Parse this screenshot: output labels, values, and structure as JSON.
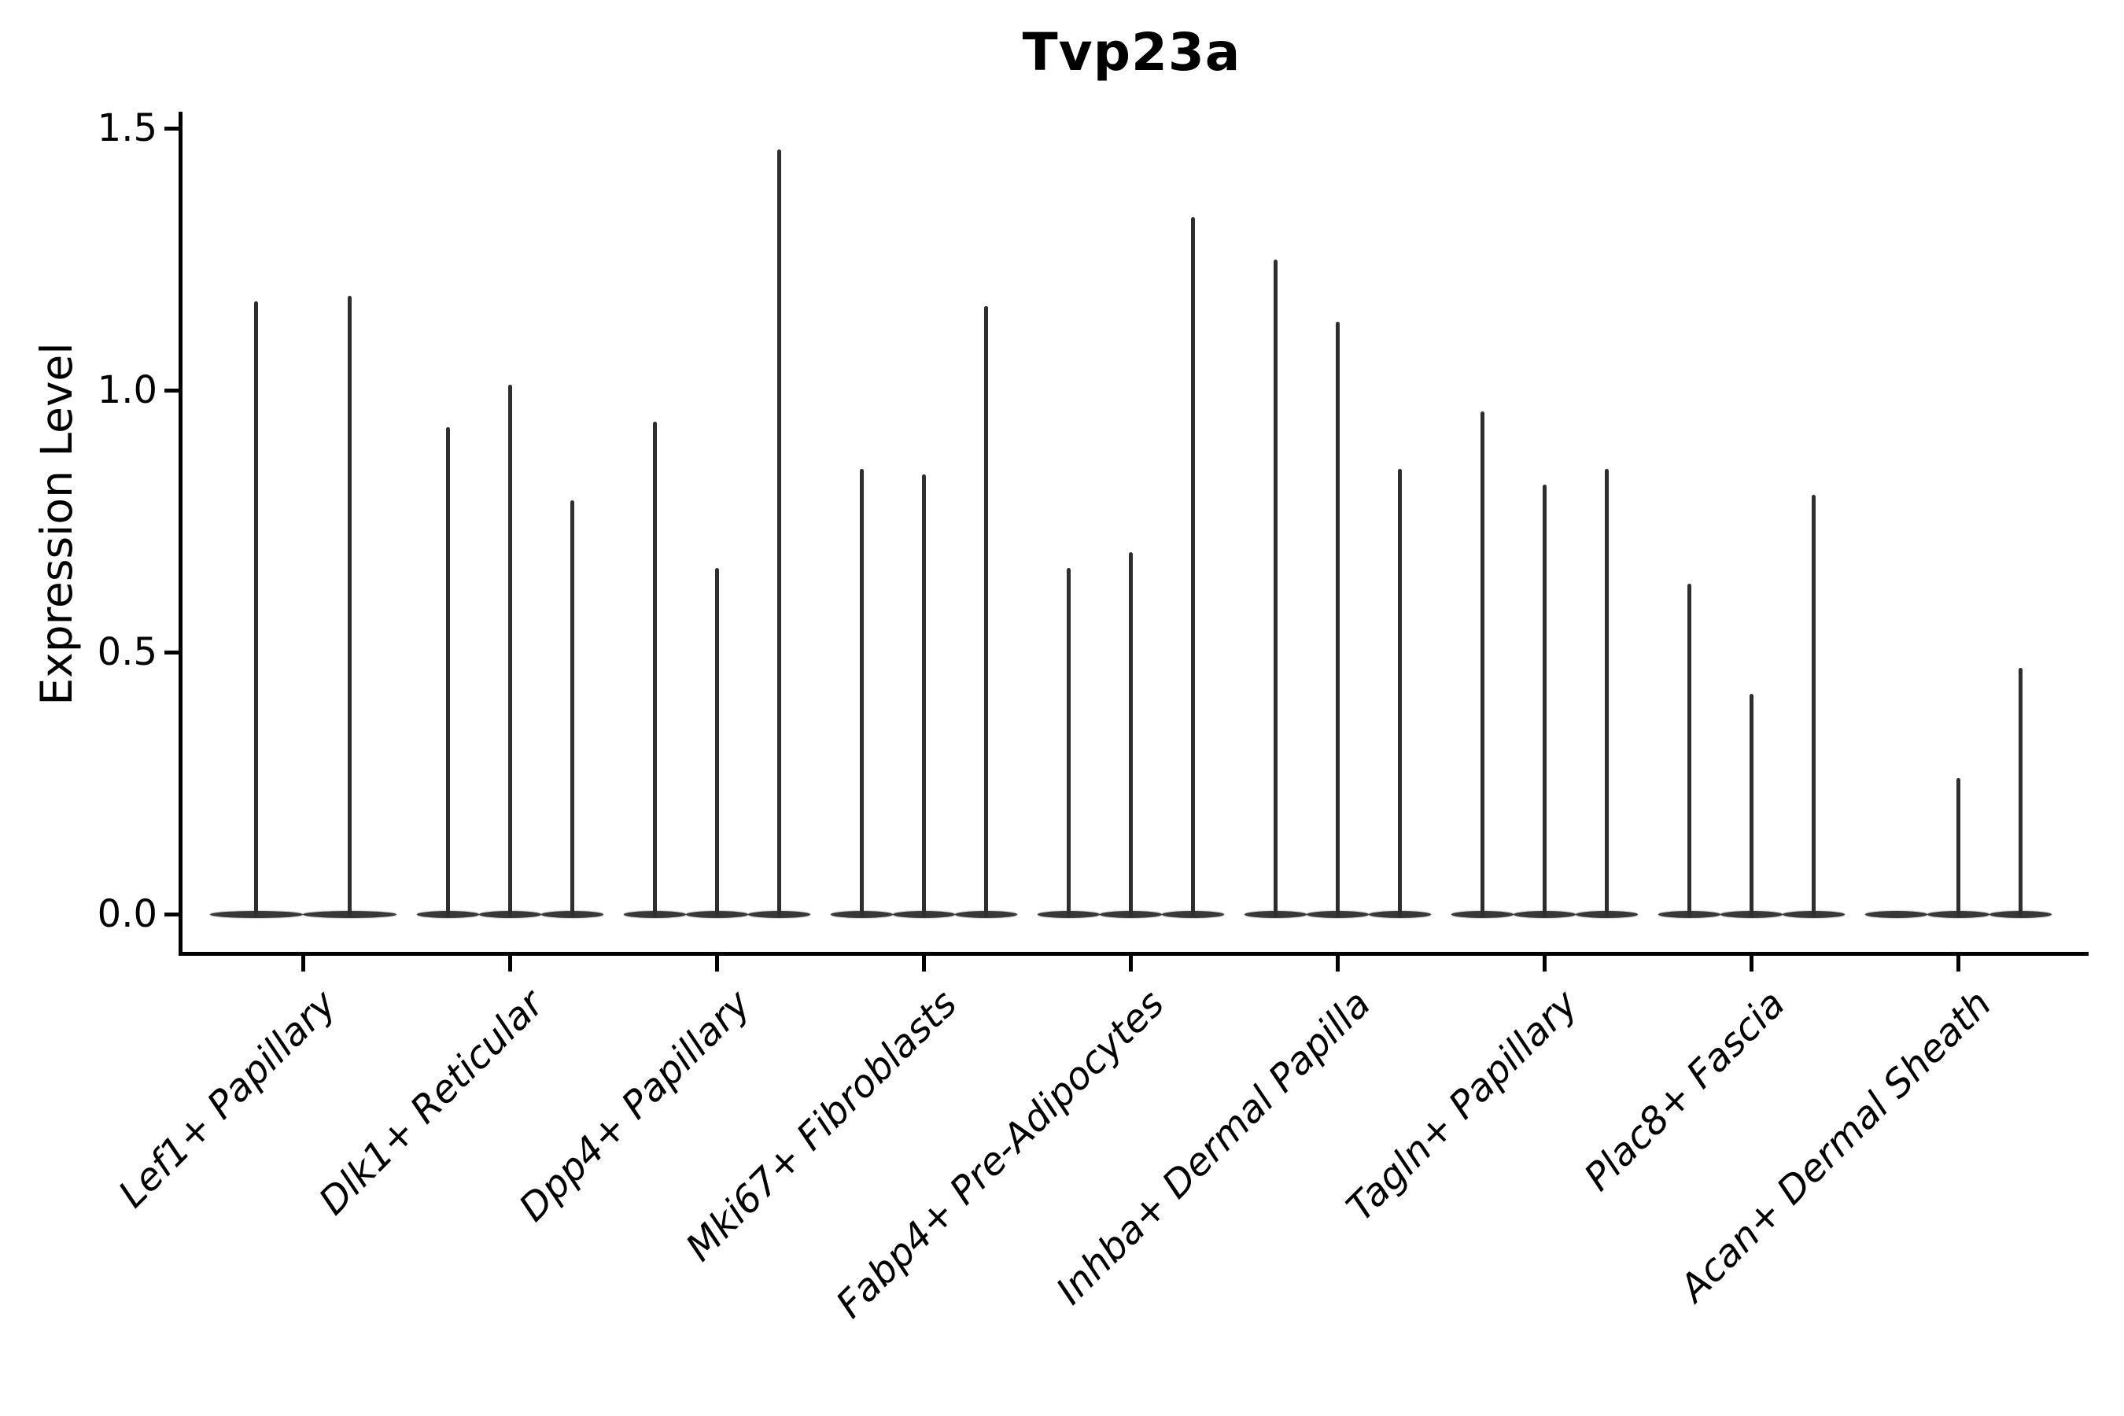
{
  "title": "Tvp23a",
  "y_axis_label": "Expression Level",
  "colors": {
    "violin": "#2e2e2e",
    "axis": "#000000",
    "background": "#ffffff"
  },
  "chart_data": {
    "type": "violin",
    "title": "Tvp23a",
    "xlabel": "",
    "ylabel": "Expression Level",
    "ylim": [
      -0.07,
      1.53
    ],
    "yticks": [
      0.0,
      0.5,
      1.0,
      1.5
    ],
    "ytick_labels": [
      "0.0",
      "0.5",
      "1.0",
      "1.5"
    ],
    "grid": false,
    "legend_position": "none",
    "description": "Violin plot of single-gene expression per cell type; each category contains 2-3 very thin violins whose density mass sits at 0 with a narrow spike rising to the maximum expression value.",
    "categories": [
      "Lef1+ Papillary",
      "Dlk1+ Reticular",
      "Dpp4+ Papillary",
      "Mki67+ Fibroblasts",
      "Fabp4+ Pre-Adipocytes",
      "Inhba+ Dermal Papilla",
      "Tagln+ Papillary",
      "Plac8+ Fascia",
      "Acan+ Dermal Sheath"
    ],
    "series": [
      {
        "category": "Lef1+ Papillary",
        "violin_max_values": [
          1.17,
          1.18
        ]
      },
      {
        "category": "Dlk1+ Reticular",
        "violin_max_values": [
          0.93,
          1.01,
          0.79
        ]
      },
      {
        "category": "Dpp4+ Papillary",
        "violin_max_values": [
          0.94,
          0.66,
          1.46
        ]
      },
      {
        "category": "Mki67+ Fibroblasts",
        "violin_max_values": [
          0.85,
          0.84,
          1.16
        ]
      },
      {
        "category": "Fabp4+ Pre-Adipocytes",
        "violin_max_values": [
          0.66,
          0.69,
          1.33
        ]
      },
      {
        "category": "Inhba+ Dermal Papilla",
        "violin_max_values": [
          1.25,
          1.13,
          0.85
        ]
      },
      {
        "category": "Tagln+ Papillary",
        "violin_max_values": [
          0.96,
          0.82,
          0.85
        ]
      },
      {
        "category": "Plac8+ Fascia",
        "violin_max_values": [
          0.63,
          0.42,
          0.8
        ]
      },
      {
        "category": "Acan+ Dermal Sheath",
        "violin_max_values": [
          0.0,
          0.26,
          0.47
        ]
      }
    ]
  }
}
